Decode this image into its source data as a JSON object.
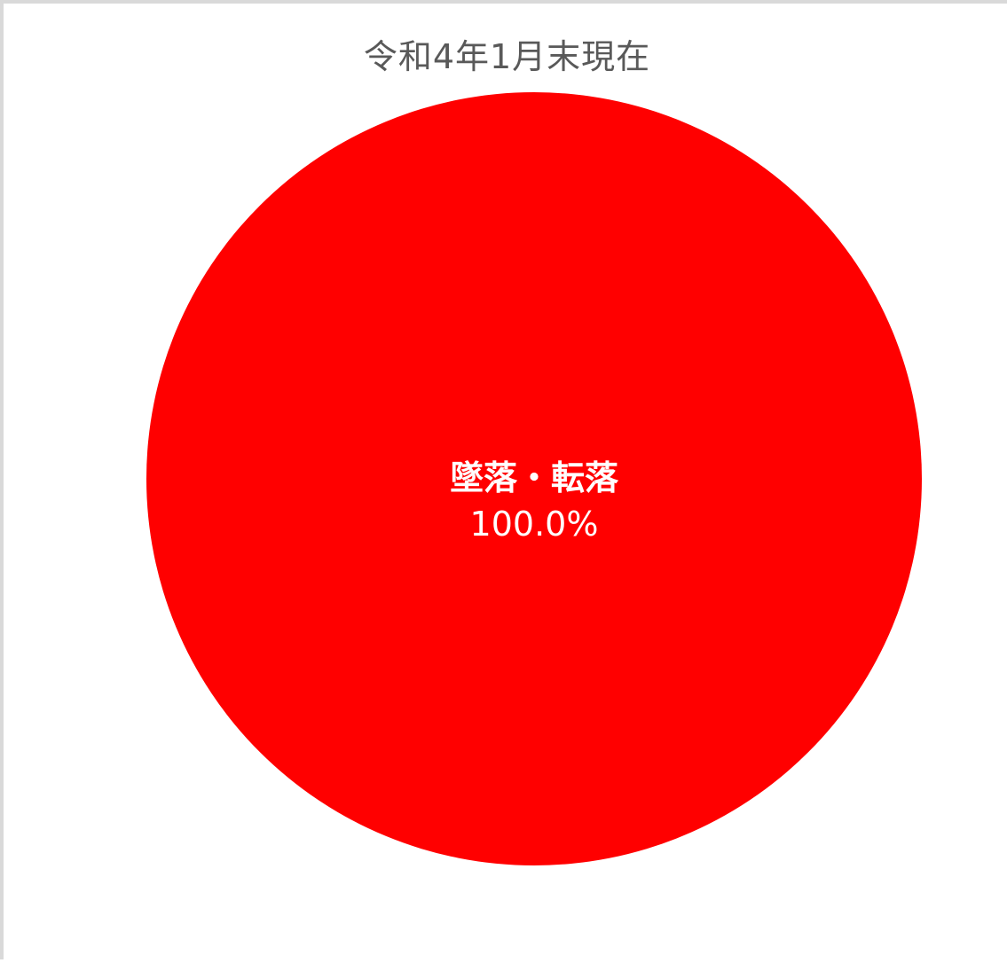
{
  "chart_data": {
    "type": "pie",
    "title": "令和4年1月末現在",
    "slices": [
      {
        "label": "墜落・転落",
        "value": 100.0,
        "value_label": "100.0%",
        "color": "#ff0000"
      }
    ],
    "legend": "none"
  }
}
